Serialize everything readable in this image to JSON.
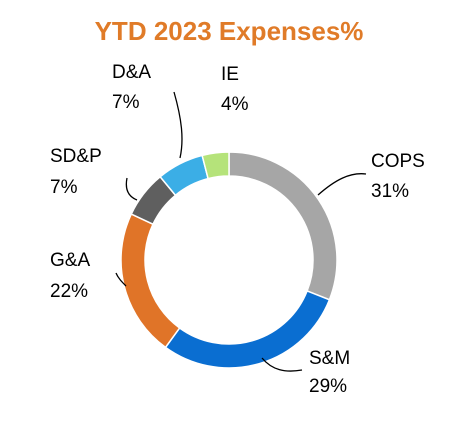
{
  "chart_data": {
    "type": "donut",
    "title": "YTD 2023 Expenses%",
    "title_color": "#E07B28",
    "slices": [
      {
        "label": "COPS",
        "value": 31,
        "value_text": "31%",
        "color": "#A6A6A6"
      },
      {
        "label": "S&M",
        "value": 29,
        "value_text": "29%",
        "color": "#0A6ED1"
      },
      {
        "label": "G&A",
        "value": 22,
        "value_text": "22%",
        "color": "#E07428"
      },
      {
        "label": "SD&P",
        "value": 7,
        "value_text": "7%",
        "color": "#5F5F5F"
      },
      {
        "label": "D&A",
        "value": 7,
        "value_text": "7%",
        "color": "#3BAEE6"
      },
      {
        "label": "IE",
        "value": 4,
        "value_text": "4%",
        "color": "#B5E37A"
      }
    ],
    "start_angle_deg": 0,
    "direction": "clockwise",
    "legend": "none",
    "data_labels": "outside with leader lines"
  }
}
